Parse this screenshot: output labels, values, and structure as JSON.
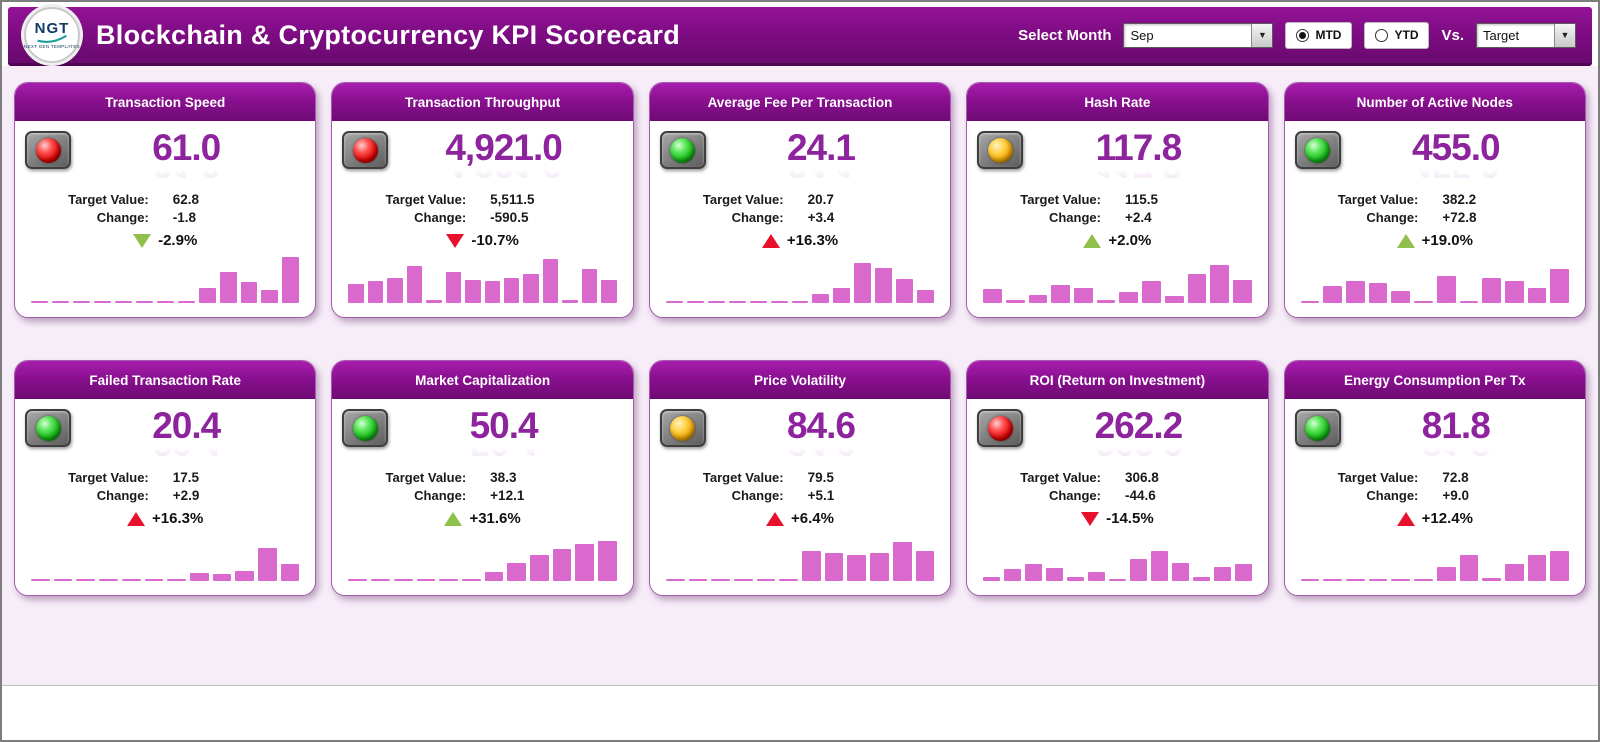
{
  "header": {
    "title": "Blockchain & Cryptocurrency KPI Scorecard",
    "logo": {
      "text": "NGT",
      "subtext": "NEXT GEN TEMPLATES"
    },
    "select_month_label": "Select Month",
    "month_value": "Sep",
    "period": [
      {
        "label": "MTD",
        "state": "selected"
      },
      {
        "label": "YTD",
        "state": ""
      }
    ],
    "vs_label": "Vs.",
    "vs_value": "Target"
  },
  "colors": {
    "header_purple": "#7d0c82",
    "value_purple": "#8e239e",
    "spark_pink": "#d969cc",
    "arrow_red": "#e8112d",
    "arrow_green": "#8fc04c"
  },
  "cards": [
    {
      "title": "Transaction Speed",
      "light": "red",
      "value": "61.0",
      "target_label": "Target Value:",
      "target": "62.8",
      "change_label": "Change:",
      "change": "-1.8",
      "arrow": "down green",
      "pct": "-2.9%",
      "spark": [
        4,
        4,
        4,
        4,
        4,
        4,
        4,
        4,
        30,
        62,
        42,
        26,
        92
      ]
    },
    {
      "title": "Transaction Throughput",
      "light": "red",
      "value": "4,921.0",
      "target_label": "Target Value:",
      "target": "5,511.5",
      "change_label": "Change:",
      "change": "-590.5",
      "arrow": "down red",
      "pct": "-10.7%",
      "spark": [
        38,
        44,
        50,
        74,
        6,
        62,
        46,
        44,
        50,
        58,
        88,
        6,
        68,
        46
      ]
    },
    {
      "title": "Average Fee Per Transaction",
      "light": "green",
      "value": "24.1",
      "target_label": "Target Value:",
      "target": "20.7",
      "change_label": "Change:",
      "change": "+3.4",
      "arrow": "up red",
      "pct": "+16.3%",
      "spark": [
        4,
        4,
        4,
        4,
        4,
        4,
        4,
        18,
        30,
        80,
        70,
        48,
        26
      ]
    },
    {
      "title": "Hash Rate",
      "light": "amber",
      "value": "117.8",
      "target_label": "Target Value:",
      "target": "115.5",
      "change_label": "Change:",
      "change": "+2.4",
      "arrow": "up green",
      "pct": "+2.0%",
      "spark": [
        28,
        6,
        16,
        36,
        30,
        6,
        22,
        44,
        14,
        58,
        76,
        46
      ]
    },
    {
      "title": "Number of Active Nodes",
      "light": "green",
      "value": "455.0",
      "target_label": "Target Value:",
      "target": "382.2",
      "change_label": "Change:",
      "change": "+72.8",
      "arrow": "up green",
      "pct": "+19.0%",
      "spark": [
        4,
        34,
        44,
        40,
        24,
        4,
        54,
        4,
        50,
        44,
        30,
        68
      ]
    },
    {
      "title": "Failed Transaction Rate",
      "light": "green",
      "value": "20.4",
      "target_label": "Target Value:",
      "target": "17.5",
      "change_label": "Change:",
      "change": "+2.9",
      "arrow": "up red",
      "pct": "+16.3%",
      "spark": [
        4,
        4,
        4,
        4,
        4,
        4,
        4,
        16,
        13,
        19,
        66,
        34
      ]
    },
    {
      "title": "Market Capitalization",
      "light": "green",
      "value": "50.4",
      "target_label": "Target Value:",
      "target": "38.3",
      "change_label": "Change:",
      "change": "+12.1",
      "arrow": "up green",
      "pct": "+31.6%",
      "spark": [
        4,
        4,
        4,
        4,
        4,
        4,
        18,
        36,
        52,
        64,
        74,
        80
      ]
    },
    {
      "title": "Price Volatility",
      "light": "amber",
      "value": "84.6",
      "target_label": "Target Value:",
      "target": "79.5",
      "change_label": "Change:",
      "change": "+5.1",
      "arrow": "up red",
      "pct": "+6.4%",
      "spark": [
        4,
        4,
        4,
        4,
        4,
        4,
        60,
        56,
        52,
        56,
        78,
        60
      ]
    },
    {
      "title": "ROI (Return on Investment)",
      "light": "red",
      "value": "262.2",
      "target_label": "Target Value:",
      "target": "306.8",
      "change_label": "Change:",
      "change": "-44.6",
      "arrow": "down red",
      "pct": "-14.5%",
      "spark": [
        8,
        24,
        34,
        26,
        8,
        18,
        4,
        44,
        60,
        36,
        8,
        28,
        34
      ]
    },
    {
      "title": "Energy Consumption Per Tx",
      "light": "green",
      "value": "81.8",
      "target_label": "Target Value:",
      "target": "72.8",
      "change_label": "Change:",
      "change": "+9.0",
      "arrow": "up red",
      "pct": "+12.4%",
      "spark": [
        4,
        4,
        4,
        4,
        4,
        4,
        28,
        52,
        6,
        34,
        52,
        60
      ]
    }
  ]
}
